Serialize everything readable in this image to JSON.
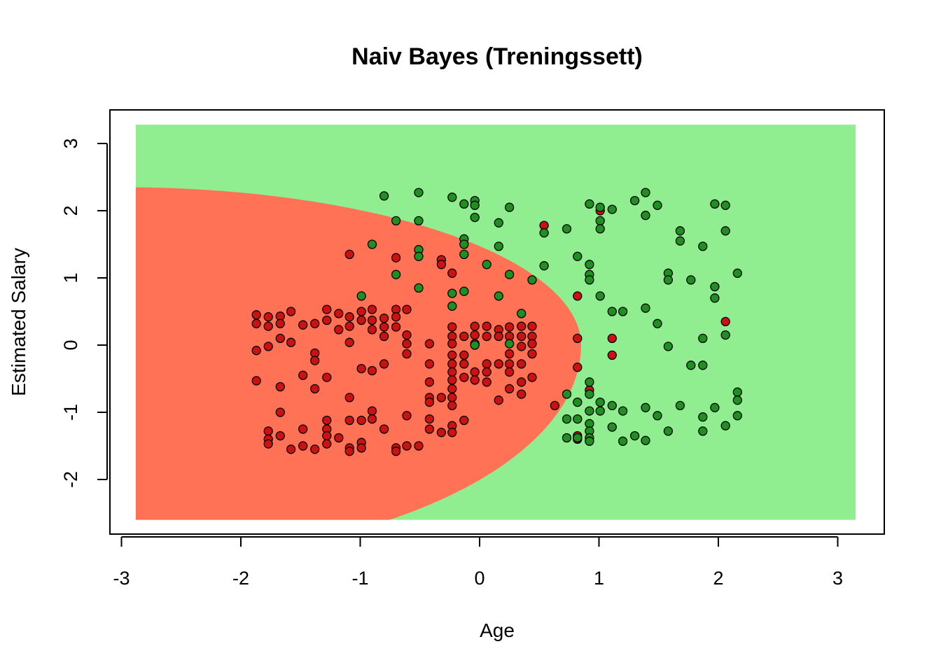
{
  "chart_data": {
    "type": "scatter",
    "title": "Naiv Bayes (Treningssett)",
    "xlabel": "Age",
    "ylabel": "Estimated Salary",
    "xlim": [
      -3,
      3.2
    ],
    "ylim": [
      -2.7,
      3.3
    ],
    "grid_extent": {
      "x": [
        -2.88,
        3.15
      ],
      "y": [
        -2.6,
        3.28
      ]
    },
    "x_ticks": [
      -3,
      -2,
      -1,
      0,
      1,
      2,
      3
    ],
    "y_ticks": [
      -2,
      -1,
      0,
      1,
      2,
      3
    ],
    "grid": false,
    "legend": "none",
    "colors": {
      "region_class0": "#ff7256",
      "region_class1": "#90ee90",
      "point_class0": "#cc1111",
      "point_class1": "#1f8f1f",
      "point_border": "#000000"
    },
    "boundary": {
      "description": "ellipse-like Naive Bayes decision boundary",
      "center": [
        -3.0,
        0.0
      ],
      "rx": 3.85,
      "ry_top": 2.35,
      "ry_bottom": 3.2
    },
    "series": [
      {
        "class": 0,
        "points": [
          [
            -1.87,
            0.45
          ],
          [
            -1.87,
            0.32
          ],
          [
            -1.87,
            -0.08
          ],
          [
            -1.87,
            -0.53
          ],
          [
            -1.77,
            0.42
          ],
          [
            -1.77,
            0.28
          ],
          [
            -1.77,
            -0.02
          ],
          [
            -1.77,
            -1.28
          ],
          [
            -1.77,
            -1.4
          ],
          [
            -1.77,
            -1.47
          ],
          [
            -1.67,
            0.43
          ],
          [
            -1.67,
            0.32
          ],
          [
            -1.67,
            0.1
          ],
          [
            -1.67,
            -0.62
          ],
          [
            -1.67,
            -1.0
          ],
          [
            -1.67,
            -1.35
          ],
          [
            -1.58,
            0.5
          ],
          [
            -1.58,
            0.04
          ],
          [
            -1.58,
            -1.55
          ],
          [
            -1.48,
            0.3
          ],
          [
            -1.48,
            -0.45
          ],
          [
            -1.48,
            -1.25
          ],
          [
            -1.48,
            -1.5
          ],
          [
            -1.38,
            0.32
          ],
          [
            -1.38,
            -0.12
          ],
          [
            -1.38,
            -0.23
          ],
          [
            -1.38,
            -0.65
          ],
          [
            -1.38,
            -1.55
          ],
          [
            -1.28,
            0.53
          ],
          [
            -1.28,
            0.37
          ],
          [
            -1.28,
            -0.48
          ],
          [
            -1.28,
            -1.12
          ],
          [
            -1.28,
            -1.25
          ],
          [
            -1.28,
            -1.35
          ],
          [
            -1.28,
            -1.47
          ],
          [
            -1.18,
            0.47
          ],
          [
            -1.18,
            0.23
          ],
          [
            -1.18,
            -1.38
          ],
          [
            -1.09,
            1.35
          ],
          [
            -1.09,
            0.42
          ],
          [
            -1.09,
            0.28
          ],
          [
            -1.09,
            0.04
          ],
          [
            -1.09,
            -0.78
          ],
          [
            -1.09,
            -1.12
          ],
          [
            -1.09,
            -1.53
          ],
          [
            -1.09,
            -1.58
          ],
          [
            -0.99,
            0.5
          ],
          [
            -0.99,
            0.37
          ],
          [
            -0.99,
            -0.35
          ],
          [
            -0.99,
            -1.12
          ],
          [
            -0.99,
            -1.45
          ],
          [
            -0.99,
            -1.53
          ],
          [
            -0.9,
            0.53
          ],
          [
            -0.9,
            0.37
          ],
          [
            -0.9,
            0.23
          ],
          [
            -0.9,
            -0.38
          ],
          [
            -0.9,
            -0.98
          ],
          [
            -0.9,
            -1.1
          ],
          [
            -0.8,
            0.4
          ],
          [
            -0.8,
            0.27
          ],
          [
            -0.8,
            0.13
          ],
          [
            -0.8,
            -0.28
          ],
          [
            -0.8,
            -1.25
          ],
          [
            -0.7,
            1.3
          ],
          [
            -0.7,
            0.53
          ],
          [
            -0.7,
            0.42
          ],
          [
            -0.7,
            0.27
          ],
          [
            -0.7,
            -1.53
          ],
          [
            -0.7,
            -1.58
          ],
          [
            -0.61,
            0.53
          ],
          [
            -0.61,
            0.15
          ],
          [
            -0.61,
            0.02
          ],
          [
            -0.61,
            -0.13
          ],
          [
            -0.61,
            -1.05
          ],
          [
            -0.61,
            -1.5
          ],
          [
            -0.51,
            -1.5
          ],
          [
            -0.42,
            0.02
          ],
          [
            -0.42,
            -0.28
          ],
          [
            -0.42,
            -0.55
          ],
          [
            -0.42,
            -0.78
          ],
          [
            -0.42,
            -0.85
          ],
          [
            -0.42,
            -1.1
          ],
          [
            -0.42,
            -1.25
          ],
          [
            -0.32,
            1.27
          ],
          [
            -0.32,
            1.2
          ],
          [
            -0.32,
            -0.78
          ],
          [
            -0.32,
            -1.3
          ],
          [
            -0.23,
            1.07
          ],
          [
            -0.23,
            0.27
          ],
          [
            -0.23,
            0.13
          ],
          [
            -0.23,
            0.02
          ],
          [
            -0.23,
            -0.15
          ],
          [
            -0.23,
            -0.28
          ],
          [
            -0.23,
            -0.4
          ],
          [
            -0.23,
            -0.52
          ],
          [
            -0.23,
            -0.65
          ],
          [
            -0.23,
            -0.78
          ],
          [
            -0.23,
            -0.9
          ],
          [
            -0.23,
            -1.2
          ],
          [
            -0.23,
            -1.3
          ],
          [
            -0.13,
            0.13
          ],
          [
            -0.13,
            -0.15
          ],
          [
            -0.13,
            -0.28
          ],
          [
            -0.13,
            -0.48
          ],
          [
            -0.13,
            -1.12
          ],
          [
            -0.04,
            0.28
          ],
          [
            -0.04,
            0.15
          ],
          [
            -0.04,
            0.02
          ],
          [
            -0.04,
            -0.4
          ],
          [
            -0.04,
            -0.52
          ],
          [
            0.06,
            0.28
          ],
          [
            0.06,
            0.13
          ],
          [
            0.06,
            -0.28
          ],
          [
            0.06,
            -0.4
          ],
          [
            0.06,
            -0.55
          ],
          [
            0.16,
            0.23
          ],
          [
            0.16,
            0.13
          ],
          [
            0.16,
            -0.28
          ],
          [
            0.16,
            -0.82
          ],
          [
            0.25,
            0.27
          ],
          [
            0.25,
            0.13
          ],
          [
            0.25,
            -0.13
          ],
          [
            0.25,
            -0.28
          ],
          [
            0.25,
            -0.4
          ],
          [
            0.25,
            -0.65
          ],
          [
            0.35,
            0.28
          ],
          [
            0.35,
            0.13
          ],
          [
            0.35,
            -0.02
          ],
          [
            0.35,
            -0.28
          ],
          [
            0.35,
            -0.55
          ],
          [
            0.35,
            -0.73
          ],
          [
            0.44,
            0.28
          ],
          [
            0.44,
            0.13
          ],
          [
            0.44,
            0.02
          ],
          [
            0.44,
            -0.13
          ],
          [
            0.44,
            -0.48
          ],
          [
            0.54,
            1.78
          ],
          [
            0.63,
            -0.9
          ],
          [
            0.82,
            0.73
          ],
          [
            0.82,
            0.1
          ],
          [
            0.82,
            -0.33
          ],
          [
            0.82,
            -1.35
          ],
          [
            0.82,
            -1.4
          ],
          [
            0.92,
            -0.67
          ],
          [
            1.01,
            2.0
          ],
          [
            1.11,
            0.1
          ],
          [
            1.11,
            -0.15
          ],
          [
            2.06,
            0.35
          ]
        ]
      },
      {
        "class": 1,
        "points": [
          [
            -0.8,
            2.22
          ],
          [
            -0.7,
            1.85
          ],
          [
            -0.51,
            2.27
          ],
          [
            -0.51,
            1.85
          ],
          [
            -0.51,
            1.42
          ],
          [
            -0.51,
            1.32
          ],
          [
            -0.51,
            0.85
          ],
          [
            -0.7,
            1.05
          ],
          [
            -0.9,
            1.5
          ],
          [
            -0.99,
            0.73
          ],
          [
            -0.23,
            2.2
          ],
          [
            -0.13,
            2.1
          ],
          [
            -0.04,
            2.15
          ],
          [
            -0.04,
            2.08
          ],
          [
            -0.04,
            1.9
          ],
          [
            -0.13,
            1.58
          ],
          [
            -0.13,
            1.5
          ],
          [
            -0.13,
            1.35
          ],
          [
            -0.23,
            0.77
          ],
          [
            -0.23,
            0.58
          ],
          [
            -0.13,
            0.8
          ],
          [
            0.06,
            1.2
          ],
          [
            0.16,
            1.82
          ],
          [
            0.16,
            1.47
          ],
          [
            0.25,
            2.05
          ],
          [
            0.25,
            1.05
          ],
          [
            0.44,
            0.97
          ],
          [
            0.54,
            1.67
          ],
          [
            0.54,
            1.18
          ],
          [
            0.35,
            0.47
          ],
          [
            0.16,
            0.73
          ],
          [
            0.73,
            1.73
          ],
          [
            0.82,
            1.32
          ],
          [
            0.92,
            1.2
          ],
          [
            0.92,
            1.05
          ],
          [
            0.92,
            0.97
          ],
          [
            1.01,
            0.73
          ],
          [
            0.92,
            2.1
          ],
          [
            1.01,
            2.05
          ],
          [
            1.01,
            1.85
          ],
          [
            1.01,
            1.73
          ],
          [
            1.11,
            2.02
          ],
          [
            1.3,
            2.15
          ],
          [
            1.39,
            2.27
          ],
          [
            1.39,
            1.93
          ],
          [
            1.49,
            2.08
          ],
          [
            1.68,
            1.7
          ],
          [
            1.68,
            1.55
          ],
          [
            1.87,
            1.47
          ],
          [
            1.58,
            1.07
          ],
          [
            1.58,
            0.97
          ],
          [
            1.77,
            0.97
          ],
          [
            1.97,
            2.1
          ],
          [
            2.06,
            2.08
          ],
          [
            2.06,
            1.7
          ],
          [
            2.16,
            1.07
          ],
          [
            1.97,
            0.87
          ],
          [
            1.97,
            0.7
          ],
          [
            1.39,
            0.55
          ],
          [
            1.49,
            0.32
          ],
          [
            1.2,
            0.5
          ],
          [
            1.11,
            0.5
          ],
          [
            2.06,
            0.15
          ],
          [
            1.87,
            0.1
          ],
          [
            1.58,
            -0.02
          ],
          [
            1.77,
            -0.3
          ],
          [
            1.87,
            -0.3
          ],
          [
            2.16,
            -0.7
          ],
          [
            2.16,
            -0.82
          ],
          [
            1.97,
            -0.93
          ],
          [
            1.68,
            -0.9
          ],
          [
            1.39,
            -0.93
          ],
          [
            1.49,
            -1.05
          ],
          [
            1.2,
            -0.98
          ],
          [
            1.11,
            -0.9
          ],
          [
            1.01,
            -0.85
          ],
          [
            1.01,
            -0.98
          ],
          [
            2.16,
            -1.05
          ],
          [
            1.87,
            -1.07
          ],
          [
            2.06,
            -1.2
          ],
          [
            1.87,
            -1.28
          ],
          [
            1.58,
            -1.28
          ],
          [
            1.11,
            -1.22
          ],
          [
            1.3,
            -1.35
          ],
          [
            1.39,
            -1.42
          ],
          [
            1.2,
            -1.43
          ],
          [
            0.92,
            -0.55
          ],
          [
            0.92,
            -0.73
          ],
          [
            0.73,
            -0.73
          ],
          [
            0.82,
            -0.85
          ],
          [
            0.92,
            -0.98
          ],
          [
            0.73,
            -1.1
          ],
          [
            0.82,
            -1.1
          ],
          [
            0.92,
            -1.17
          ],
          [
            0.92,
            -1.28
          ],
          [
            0.92,
            -1.38
          ],
          [
            0.92,
            -1.43
          ],
          [
            0.73,
            -1.38
          ],
          [
            0.82,
            -1.38
          ],
          [
            -0.04,
            0.0
          ],
          [
            0.25,
            0.02
          ]
        ]
      }
    ]
  }
}
